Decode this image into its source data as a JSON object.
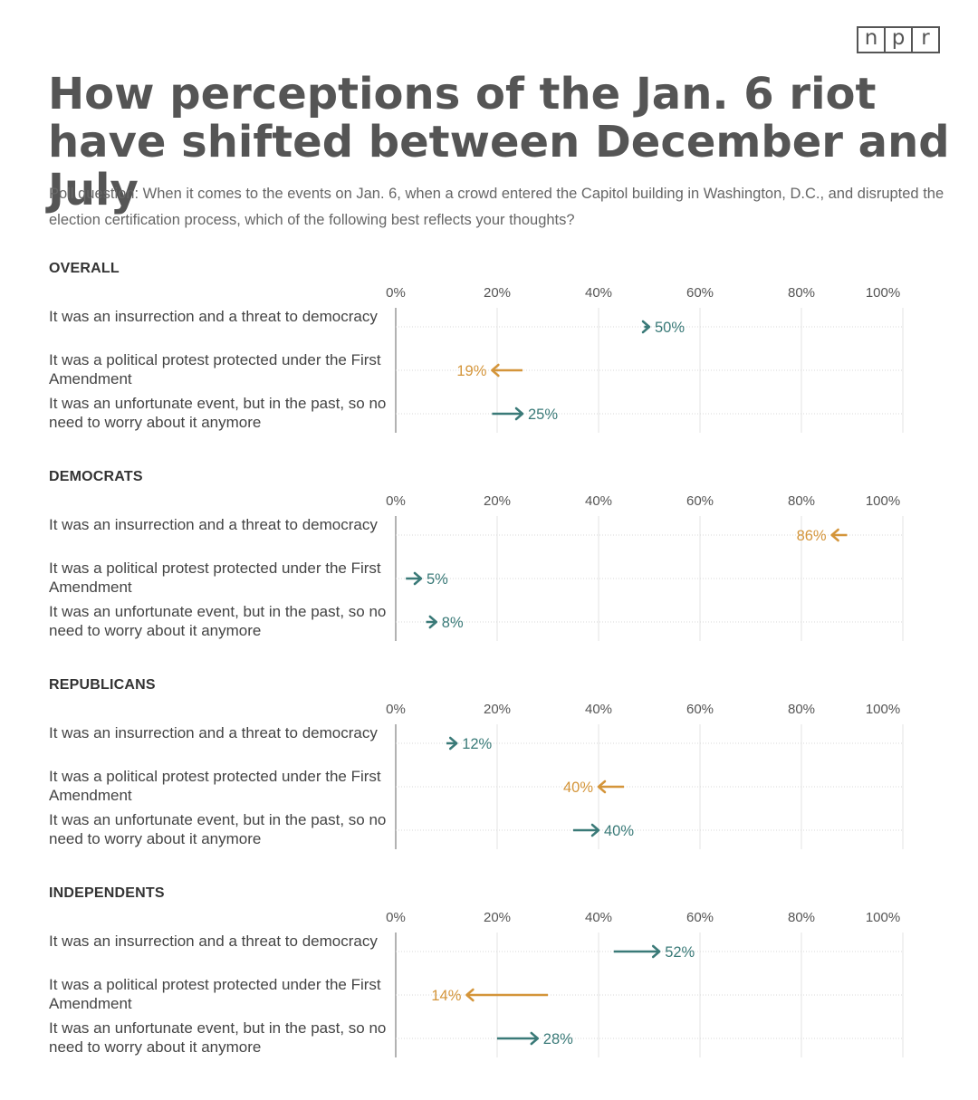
{
  "logo": {
    "letters": [
      "n",
      "p",
      "r"
    ]
  },
  "title": "How perceptions of the Jan. 6 riot have shifted between December and July",
  "subtitle": "Poll question: When it comes to the events on Jan. 6, when a crowd entered the Capitol building in Washington, D.C., and disrupted the election certification process, which of the following best reflects your thoughts?",
  "colors": {
    "increase": "#3a7a78",
    "decrease": "#d4953a",
    "grid": "#e3e3e3",
    "axis": "#999999"
  },
  "chart_data": {
    "type": "arrow-dot",
    "title": "How perceptions of the Jan. 6 riot have shifted between December and July",
    "xlim": [
      0,
      100
    ],
    "ticks": [
      "0%",
      "20%",
      "40%",
      "60%",
      "80%",
      "100%"
    ],
    "categories": [
      "It was an insurrection and a threat to democracy",
      "It was a political protest protected under the First Amendment",
      "It was an unfortunate event, but in the past, so no need to worry about it anymore"
    ],
    "panels": [
      {
        "name": "OVERALL",
        "rows": [
          {
            "from": 49,
            "to": 50,
            "label": "50%"
          },
          {
            "from": 25,
            "to": 19,
            "label": "19%"
          },
          {
            "from": 19,
            "to": 25,
            "label": "25%"
          }
        ]
      },
      {
        "name": "DEMOCRATS",
        "rows": [
          {
            "from": 89,
            "to": 86,
            "label": "86%"
          },
          {
            "from": 2,
            "to": 5,
            "label": "5%"
          },
          {
            "from": 6,
            "to": 8,
            "label": "8%"
          }
        ]
      },
      {
        "name": "REPUBLICANS",
        "rows": [
          {
            "from": 10,
            "to": 12,
            "label": "12%"
          },
          {
            "from": 45,
            "to": 40,
            "label": "40%"
          },
          {
            "from": 35,
            "to": 40,
            "label": "40%"
          }
        ]
      },
      {
        "name": "INDEPENDENTS",
        "rows": [
          {
            "from": 43,
            "to": 52,
            "label": "52%"
          },
          {
            "from": 30,
            "to": 14,
            "label": "14%"
          },
          {
            "from": 20,
            "to": 28,
            "label": "28%"
          }
        ]
      }
    ]
  }
}
